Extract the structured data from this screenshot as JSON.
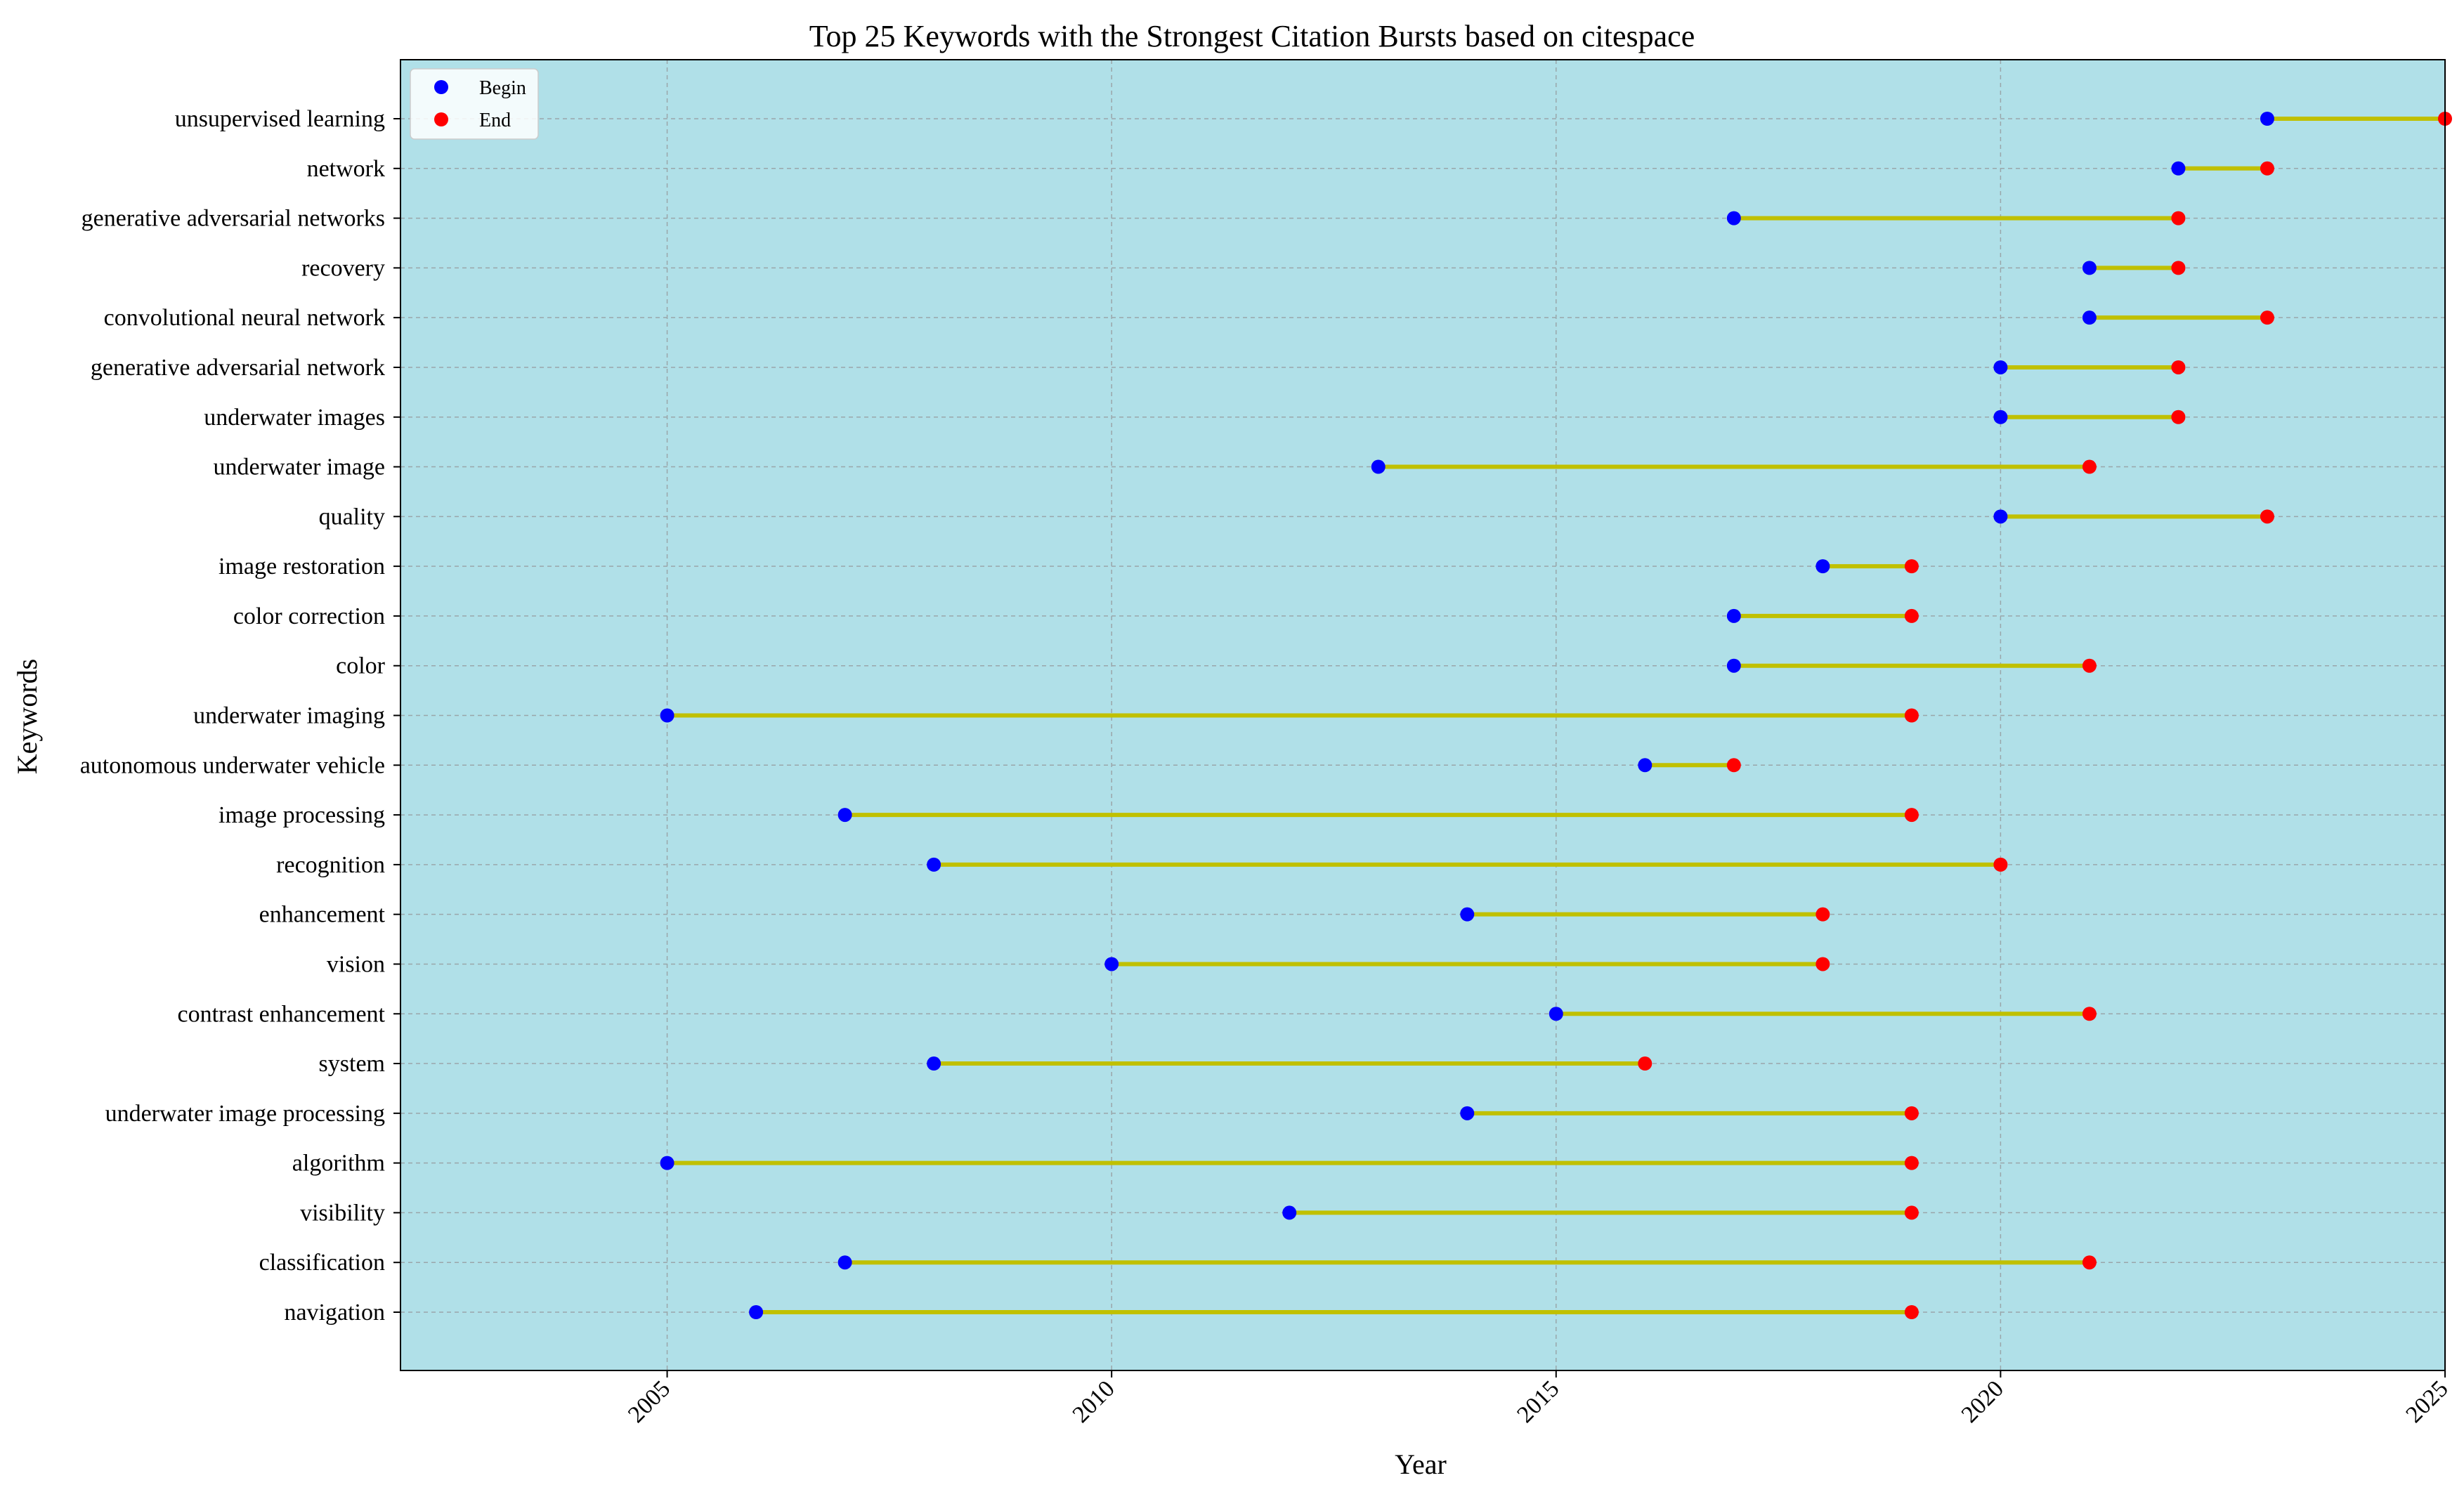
{
  "chart_data": {
    "type": "line",
    "title": "Top 25 Keywords with the Strongest Citation Bursts based on citespace",
    "xlabel": "Year",
    "ylabel": "Keywords",
    "xlim": [
      2002,
      2025
    ],
    "xticks": [
      2005,
      2010,
      2015,
      2020,
      2025
    ],
    "grid": true,
    "legend_position": "top-left",
    "legend": [
      {
        "label": "Begin",
        "color": "#0000ff"
      },
      {
        "label": "End",
        "color": "#ff0000"
      }
    ],
    "colors": {
      "plot_background": "#b0e0e8",
      "segment": "#c0c000",
      "begin": "#0000ff",
      "end": "#ff0000"
    },
    "keywords": [
      {
        "name": "unsupervised learning",
        "begin": 2023,
        "end": 2025
      },
      {
        "name": "network",
        "begin": 2022,
        "end": 2023
      },
      {
        "name": "generative adversarial networks",
        "begin": 2017,
        "end": 2022
      },
      {
        "name": "recovery",
        "begin": 2021,
        "end": 2022
      },
      {
        "name": "convolutional neural network",
        "begin": 2021,
        "end": 2023
      },
      {
        "name": "generative adversarial network",
        "begin": 2020,
        "end": 2022
      },
      {
        "name": "underwater images",
        "begin": 2020,
        "end": 2022
      },
      {
        "name": "underwater image",
        "begin": 2013,
        "end": 2021
      },
      {
        "name": "quality",
        "begin": 2020,
        "end": 2023
      },
      {
        "name": "image restoration",
        "begin": 2018,
        "end": 2019
      },
      {
        "name": "color correction",
        "begin": 2017,
        "end": 2019
      },
      {
        "name": "color",
        "begin": 2017,
        "end": 2021
      },
      {
        "name": "underwater imaging",
        "begin": 2005,
        "end": 2019
      },
      {
        "name": "autonomous underwater vehicle",
        "begin": 2016,
        "end": 2017
      },
      {
        "name": "image processing",
        "begin": 2007,
        "end": 2019
      },
      {
        "name": "recognition",
        "begin": 2008,
        "end": 2020
      },
      {
        "name": "enhancement",
        "begin": 2014,
        "end": 2018
      },
      {
        "name": "vision",
        "begin": 2010,
        "end": 2018
      },
      {
        "name": "contrast enhancement",
        "begin": 2015,
        "end": 2021
      },
      {
        "name": "system",
        "begin": 2008,
        "end": 2016
      },
      {
        "name": "underwater image processing",
        "begin": 2014,
        "end": 2019
      },
      {
        "name": "algorithm",
        "begin": 2005,
        "end": 2019
      },
      {
        "name": "visibility",
        "begin": 2012,
        "end": 2019
      },
      {
        "name": "classification",
        "begin": 2007,
        "end": 2021
      },
      {
        "name": "navigation",
        "begin": 2006,
        "end": 2019
      }
    ]
  }
}
